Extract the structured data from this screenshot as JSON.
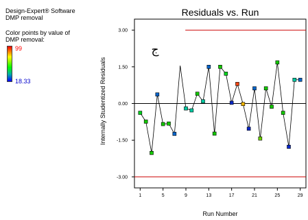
{
  "software": {
    "line1": "Design-Expert® Software",
    "line2": "DMP removal"
  },
  "legend": {
    "caption_line1": "Color points by value of",
    "caption_line2": "DMP removal:",
    "max_label": "99",
    "min_label": "18.33",
    "max_color": "#ff0000",
    "min_color": "#0000cc"
  },
  "panel_mark": "ج",
  "chart_data": {
    "type": "line",
    "title": "Residuals vs. Run",
    "xlabel": "Run Number",
    "ylabel": "Internally Studentized Residuals",
    "xlim": [
      0,
      30
    ],
    "ylim": [
      -3.45,
      3.45
    ],
    "x_ticks": [
      1,
      5,
      9,
      13,
      17,
      21,
      25,
      29
    ],
    "y_ticks": [
      {
        "value": 3.0,
        "label": "3.00"
      },
      {
        "value": 1.5,
        "label": "1.50"
      },
      {
        "value": 0.0,
        "label": "0.00"
      },
      {
        "value": -1.5,
        "label": "-1.50"
      },
      {
        "value": -3.0,
        "label": "-3.00"
      }
    ],
    "limits": [
      3.0,
      -3.0
    ],
    "limit_color": "#cc0000",
    "series": [
      {
        "points": [
          {
            "x": 1,
            "y": -0.38,
            "color": "#00d21e"
          },
          {
            "x": 2,
            "y": -0.74,
            "color": "#14c800"
          },
          {
            "x": 3,
            "y": -2.02,
            "color": "#14c800"
          },
          {
            "x": 4,
            "y": 0.37,
            "color": "#0a64c8"
          },
          {
            "x": 5,
            "y": -0.84,
            "color": "#14c800"
          },
          {
            "x": 6,
            "y": -0.82,
            "color": "#14c800"
          },
          {
            "x": 7,
            "y": -1.24,
            "color": "#0a64c8"
          },
          {
            "x": 8,
            "y": 1.55,
            "color": ""
          },
          {
            "x": 9,
            "y": -0.2,
            "color": "#00c8a0"
          },
          {
            "x": 10,
            "y": -0.28,
            "color": "#00c8a0"
          },
          {
            "x": 11,
            "y": 0.4,
            "color": "#14c800"
          },
          {
            "x": 12,
            "y": 0.09,
            "color": "#00c8a0"
          },
          {
            "x": 13,
            "y": 1.5,
            "color": "#0a64c8"
          },
          {
            "x": 14,
            "y": -1.23,
            "color": "#14c800"
          },
          {
            "x": 15,
            "y": 1.5,
            "color": "#14c800"
          },
          {
            "x": 16,
            "y": 1.22,
            "color": "#00d21e"
          },
          {
            "x": 17,
            "y": 0.03,
            "color": "#0a28c8"
          },
          {
            "x": 18,
            "y": 0.8,
            "color": "#f04614"
          },
          {
            "x": 19,
            "y": -0.02,
            "color": "#f0b400"
          },
          {
            "x": 20,
            "y": -1.03,
            "color": "#0a28c8"
          },
          {
            "x": 21,
            "y": 0.62,
            "color": "#0a64c8"
          },
          {
            "x": 22,
            "y": -1.43,
            "color": "#6ed200"
          },
          {
            "x": 23,
            "y": 0.62,
            "color": "#14c800"
          },
          {
            "x": 24,
            "y": -0.13,
            "color": "#14c800"
          },
          {
            "x": 25,
            "y": 1.68,
            "color": "#14c800"
          },
          {
            "x": 26,
            "y": -0.38,
            "color": "#14c800"
          },
          {
            "x": 27,
            "y": -1.77,
            "color": "#0a28c8"
          },
          {
            "x": 28,
            "y": 0.97,
            "color": "#00c8a0"
          },
          {
            "x": 29,
            "y": 0.97,
            "color": "#0a64c8"
          }
        ]
      }
    ]
  }
}
